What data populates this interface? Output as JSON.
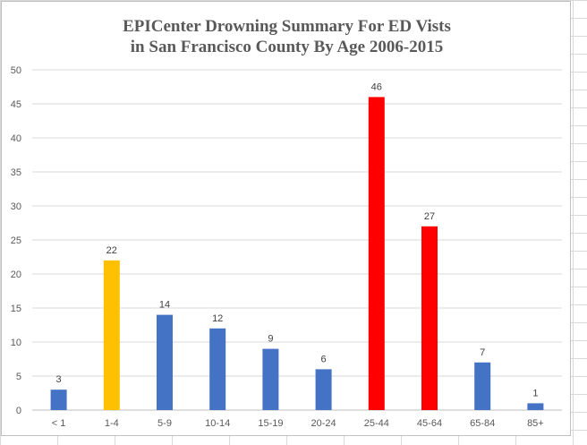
{
  "chart_data": {
    "type": "bar",
    "title_lines": [
      "EPICenter Drowning Summary For ED Vists",
      "in San Francisco County By Age 2006-2015"
    ],
    "categories": [
      "< 1",
      "1-4",
      "5-9",
      "10-14",
      "15-19",
      "20-24",
      "25-44",
      "45-64",
      "65-84",
      "85+"
    ],
    "values": [
      3,
      22,
      14,
      12,
      9,
      6,
      46,
      27,
      7,
      1
    ],
    "bar_colors": [
      "#4472c4",
      "#ffc000",
      "#4472c4",
      "#4472c4",
      "#4472c4",
      "#4472c4",
      "#ff0000",
      "#ff0000",
      "#4472c4",
      "#4472c4"
    ],
    "ylim": [
      0,
      50
    ],
    "y_ticks": [
      0,
      5,
      10,
      15,
      20,
      25,
      30,
      35,
      40,
      45,
      50
    ],
    "xlabel": "",
    "ylabel": "",
    "grid": true,
    "legend": "none",
    "colors": {
      "gridline": "#d9d9d9",
      "axis_line": "#bfbfbf",
      "tick_text": "#595959",
      "title_text": "#595959"
    }
  }
}
